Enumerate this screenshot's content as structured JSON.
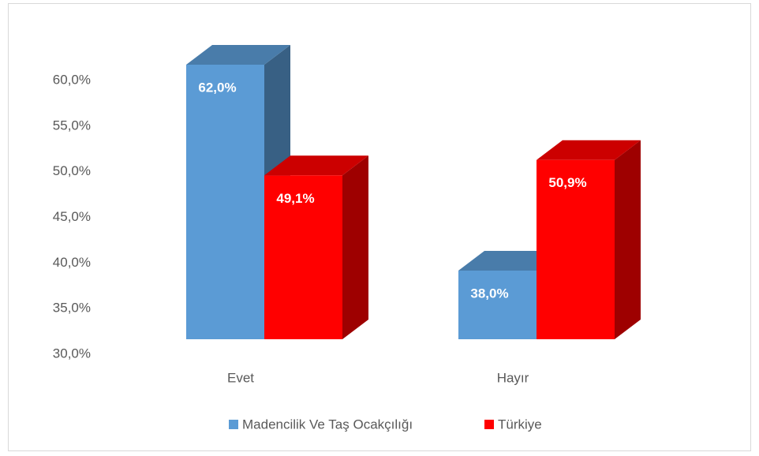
{
  "chart_data": {
    "type": "bar3d",
    "categories": [
      "Evet",
      "Hayır"
    ],
    "series": [
      {
        "name": "Madencilik Ve Taş Ocakçılığı",
        "color": "#5b9bd5",
        "values": [
          62.0,
          38.0
        ],
        "value_labels": [
          "62,0%",
          "38,0%"
        ]
      },
      {
        "name": "Türkiye",
        "color": "#ff0000",
        "values": [
          49.1,
          50.9
        ],
        "value_labels": [
          "49,1%",
          "50,9%"
        ]
      }
    ],
    "ylim": [
      30,
      62
    ],
    "yticks": [
      {
        "value": 30,
        "label": "30,0%"
      },
      {
        "value": 35,
        "label": "35,0%"
      },
      {
        "value": 40,
        "label": "40,0%"
      },
      {
        "value": 45,
        "label": "45,0%"
      },
      {
        "value": 50,
        "label": "50,0%"
      },
      {
        "value": 55,
        "label": "55,0%"
      },
      {
        "value": 60,
        "label": "60,0%"
      }
    ],
    "legend": "bottom"
  }
}
